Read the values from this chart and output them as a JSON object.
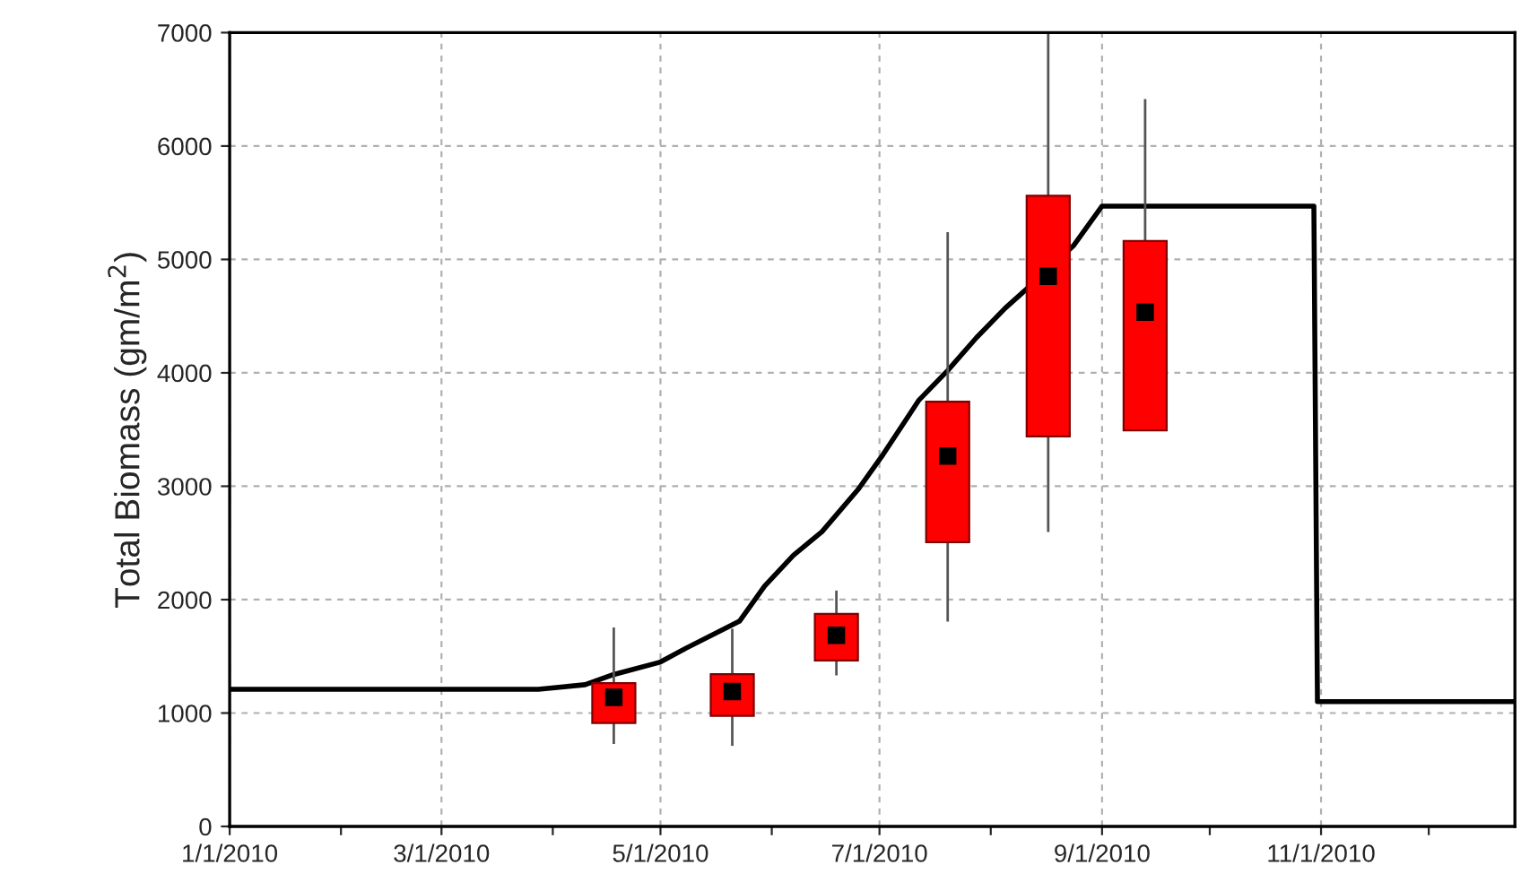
{
  "chart_data": {
    "type": "line",
    "ylabel": "Total Biomass (gm/m$^{2}$)",
    "series": [
      {
        "color": "#000000",
        "x": [
          "2010-01-01",
          "2010-03-28",
          "2010-04-10",
          "2010-04-18",
          "2010-05-01",
          "2010-05-08",
          "2010-05-23",
          "2010-05-30",
          "2010-06-07",
          "2010-06-15",
          "2010-06-25",
          "2010-07-02",
          "2010-07-12",
          "2010-07-20",
          "2010-07-28",
          "2010-08-05",
          "2010-08-17",
          "2010-08-24",
          "2010-09-01",
          "2010-10-30",
          "2010-10-31",
          "2010-12-25"
        ],
        "values": [
          1210,
          1210,
          1250,
          1340,
          1450,
          1570,
          1810,
          2120,
          2390,
          2600,
          2970,
          3280,
          3760,
          4020,
          4310,
          4570,
          4910,
          5120,
          5470,
          5470,
          1100,
          1100
        ]
      },
      {
        "type": "box",
        "color": "#ff0000",
        "x": [
          "2010-04-18",
          "2010-05-21",
          "2010-06-19",
          "2010-07-20",
          "2010-08-17",
          "2010-09-13"
        ],
        "boxes": [
          {
            "low": 727,
            "q1": 912,
            "median": 1138,
            "q3": 1264,
            "high": 1754
          },
          {
            "low": 711,
            "q1": 975,
            "median": 1190,
            "q3": 1343,
            "high": 1743
          },
          {
            "low": 1332,
            "q1": 1464,
            "median": 1686,
            "q3": 1875,
            "high": 2080
          },
          {
            "low": 1806,
            "q1": 2507,
            "median": 3266,
            "q3": 3745,
            "high": 5240
          },
          {
            "low": 2596,
            "q1": 3440,
            "median": 4851,
            "q3": 5562,
            "high": 7000
          },
          {
            "low": 3492,
            "q1": 3492,
            "median": 4535,
            "q3": 5162,
            "high": 6415
          }
        ]
      }
    ],
    "xlim": [
      "2010-01-01",
      "2010-12-25"
    ],
    "xticks": [
      {
        "value": "2010-01-01",
        "label": "1/1/2010"
      },
      {
        "value": "2010-02-01",
        "label": null
      },
      {
        "value": "2010-03-01",
        "label": "3/1/2010"
      },
      {
        "value": "2010-04-01",
        "label": null
      },
      {
        "value": "2010-05-01",
        "label": "5/1/2010"
      },
      {
        "value": "2010-06-01",
        "label": null
      },
      {
        "value": "2010-07-01",
        "label": "7/1/2010"
      },
      {
        "value": "2010-08-01",
        "label": null
      },
      {
        "value": "2010-09-01",
        "label": "9/1/2010"
      },
      {
        "value": "2010-10-01",
        "label": null
      },
      {
        "value": "2010-11-01",
        "label": "11/1/2010"
      },
      {
        "value": "2010-12-01",
        "label": null
      }
    ],
    "ylim": [
      0,
      7000
    ],
    "yticks": [
      0,
      1000,
      2000,
      3000,
      4000,
      5000,
      6000,
      7000
    ],
    "grid": true,
    "legend": false
  }
}
